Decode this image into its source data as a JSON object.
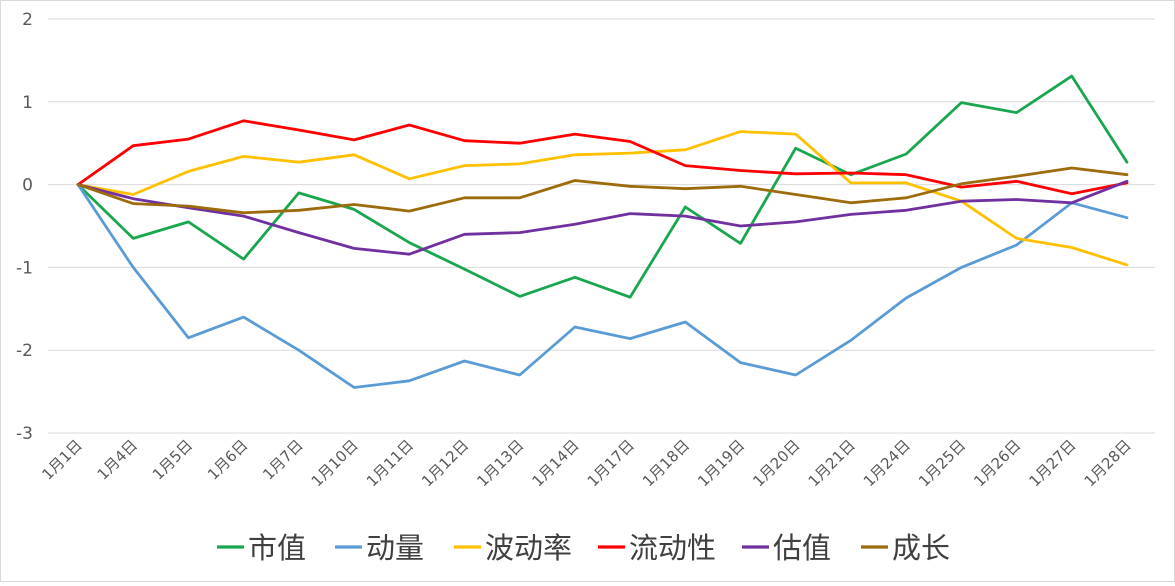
{
  "chart_data": {
    "type": "line",
    "title": "",
    "xlabel": "",
    "ylabel": "",
    "ylim": [
      -3,
      2
    ],
    "yticks": [
      2,
      1,
      0,
      -1,
      -2,
      -3
    ],
    "ytick_labels": [
      "2",
      "1",
      "0",
      "-1",
      "-2",
      "-3"
    ],
    "grid": true,
    "legend_position": "bottom",
    "categories": [
      "1月1日",
      "1月4日",
      "1月5日",
      "1月6日",
      "1月7日",
      "1月10日",
      "1月11日",
      "1月12日",
      "1月13日",
      "1月14日",
      "1月17日",
      "1月18日",
      "1月19日",
      "1月20日",
      "1月21日",
      "1月24日",
      "1月25日",
      "1月26日",
      "1月27日",
      "1月28日"
    ],
    "series": [
      {
        "name": "市值",
        "color": "#1aa64f",
        "values": [
          0,
          -0.65,
          -0.45,
          -0.9,
          -0.1,
          -0.3,
          -0.7,
          -1.02,
          -1.35,
          -1.12,
          -1.36,
          -0.27,
          -0.71,
          0.44,
          0.12,
          0.37,
          0.99,
          0.87,
          1.31,
          0.27
        ]
      },
      {
        "name": "动量",
        "color": "#5b9bd5",
        "values": [
          0,
          -1.0,
          -1.85,
          -1.6,
          -2.0,
          -2.45,
          -2.37,
          -2.13,
          -2.3,
          -1.72,
          -1.86,
          -1.66,
          -2.15,
          -2.3,
          -1.88,
          -1.37,
          -1.0,
          -0.73,
          -0.22,
          -0.4
        ]
      },
      {
        "name": "波动率",
        "color": "#ffc000",
        "values": [
          0,
          -0.12,
          0.16,
          0.34,
          0.27,
          0.36,
          0.07,
          0.23,
          0.25,
          0.36,
          0.38,
          0.42,
          0.64,
          0.61,
          0.02,
          0.02,
          -0.2,
          -0.65,
          -0.76,
          -0.97
        ]
      },
      {
        "name": "流动性",
        "color": "#ff0000",
        "values": [
          0,
          0.47,
          0.55,
          0.77,
          0.66,
          0.54,
          0.72,
          0.53,
          0.5,
          0.61,
          0.52,
          0.23,
          0.17,
          0.13,
          0.14,
          0.12,
          -0.03,
          0.04,
          -0.11,
          0.02
        ]
      },
      {
        "name": "估值",
        "color": "#7030a0",
        "values": [
          0,
          -0.17,
          -0.28,
          -0.38,
          -0.58,
          -0.77,
          -0.84,
          -0.6,
          -0.58,
          -0.48,
          -0.35,
          -0.38,
          -0.5,
          -0.45,
          -0.36,
          -0.31,
          -0.2,
          -0.18,
          -0.22,
          0.04
        ]
      },
      {
        "name": "成长",
        "color": "#9c6b0c",
        "values": [
          0,
          -0.23,
          -0.26,
          -0.34,
          -0.31,
          -0.24,
          -0.32,
          -0.16,
          -0.16,
          0.05,
          -0.02,
          -0.05,
          -0.02,
          -0.12,
          -0.22,
          -0.16,
          0.01,
          0.1,
          0.2,
          0.12
        ]
      }
    ]
  }
}
